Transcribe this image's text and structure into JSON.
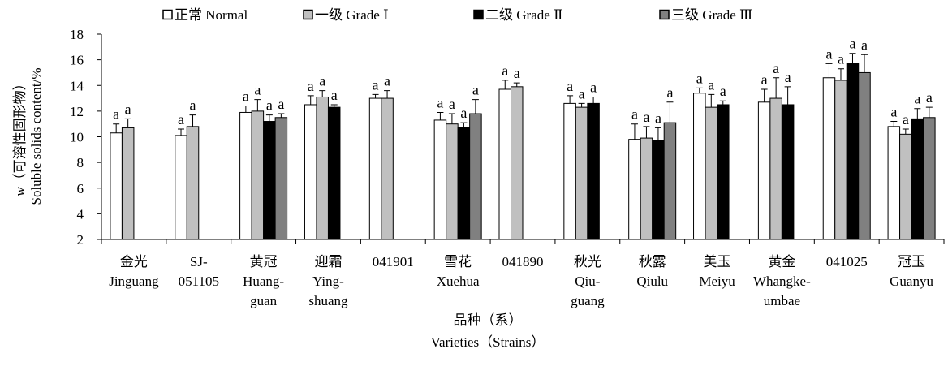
{
  "chart_data": {
    "type": "bar",
    "ylabel": {
      "symbol": "w",
      "name_cn": "（可溶性固形物）",
      "name_en": "Soluble solids content/%"
    },
    "xlabel": {
      "name_cn": "品种（系）",
      "name_en": "Varieties（Strains）"
    },
    "ylim": [
      2,
      18
    ],
    "yticks": [
      2,
      4,
      6,
      8,
      10,
      12,
      14,
      16,
      18
    ],
    "grid": false,
    "legend_position": "top",
    "categories": [
      [
        "金光",
        "Jinguang"
      ],
      [
        "SJ-",
        "051105"
      ],
      [
        "黄冠",
        "Huang-",
        "guan"
      ],
      [
        "迎霜",
        "Ying-",
        "shuang"
      ],
      [
        "041901"
      ],
      [
        "雪花",
        "Xuehua"
      ],
      [
        "041890"
      ],
      [
        "秋光",
        "Qiu-",
        "guang"
      ],
      [
        "秋露",
        "Qiulu"
      ],
      [
        "美玉",
        "Meiyu"
      ],
      [
        "黄金",
        "Whangke-",
        "umbae"
      ],
      [
        "041025"
      ],
      [
        "冠玉",
        "Guanyu"
      ]
    ],
    "series": [
      {
        "name": "正常 Normal",
        "color": "#ffffff",
        "values": [
          10.3,
          10.1,
          11.9,
          12.5,
          13.0,
          11.3,
          13.7,
          12.6,
          9.8,
          13.4,
          12.7,
          14.6,
          10.8
        ],
        "errors": [
          0.7,
          0.5,
          0.5,
          0.7,
          0.3,
          0.6,
          0.7,
          0.6,
          1.2,
          0.4,
          1.0,
          1.1,
          0.4
        ],
        "labels": [
          "a",
          "a",
          "a",
          "a",
          "a",
          "a",
          "a",
          "a",
          "a",
          "a",
          "a",
          "a",
          "a"
        ]
      },
      {
        "name": "一级 Grade Ⅰ",
        "color": "#c0c0c0",
        "values": [
          10.7,
          10.8,
          12.0,
          13.1,
          13.0,
          11.0,
          13.9,
          12.3,
          9.9,
          12.3,
          13.0,
          14.4,
          10.2
        ],
        "errors": [
          0.7,
          0.9,
          0.9,
          0.5,
          0.6,
          0.8,
          0.3,
          0.3,
          0.9,
          1.0,
          1.6,
          0.9,
          0.4
        ],
        "labels": [
          "a",
          "a",
          "a",
          "a",
          "a",
          "a",
          "a",
          "a",
          "a",
          "a",
          "a",
          "a",
          "a"
        ]
      },
      {
        "name": "二级 Grade Ⅱ",
        "color": "#000000",
        "values": [
          null,
          null,
          11.2,
          12.3,
          null,
          10.7,
          null,
          12.6,
          9.7,
          12.5,
          12.5,
          15.7,
          11.4
        ],
        "errors": [
          null,
          null,
          0.5,
          0.2,
          null,
          0.4,
          null,
          0.5,
          1.0,
          0.3,
          1.4,
          0.8,
          0.8
        ],
        "labels": [
          null,
          null,
          "a",
          "a",
          null,
          "a",
          null,
          "a",
          "a",
          "a",
          "a",
          "a",
          "a"
        ]
      },
      {
        "name": "三级 Grade Ⅲ",
        "color": "#808080",
        "values": [
          null,
          null,
          11.5,
          null,
          null,
          11.8,
          null,
          null,
          11.1,
          null,
          null,
          15.0,
          11.5
        ],
        "errors": [
          null,
          null,
          0.3,
          null,
          null,
          1.1,
          null,
          null,
          1.6,
          null,
          null,
          1.4,
          0.8
        ],
        "labels": [
          null,
          null,
          "a",
          null,
          null,
          "a",
          null,
          null,
          "a",
          null,
          null,
          "a",
          "a"
        ]
      }
    ]
  }
}
